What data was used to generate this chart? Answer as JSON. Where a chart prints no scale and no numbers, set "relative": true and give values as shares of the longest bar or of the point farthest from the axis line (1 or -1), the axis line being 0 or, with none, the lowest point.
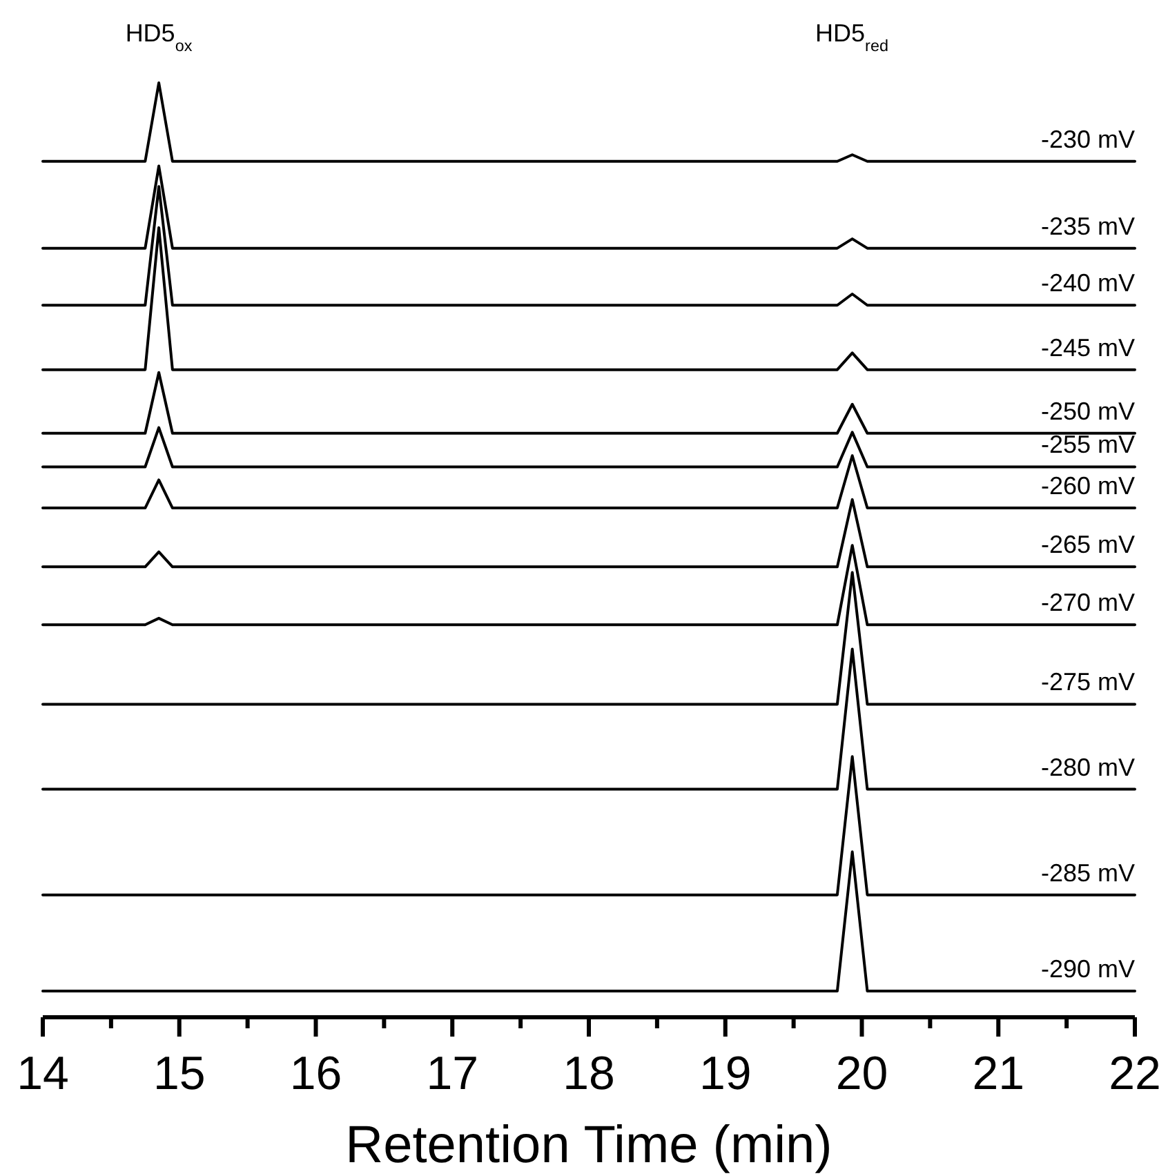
{
  "chart_data": {
    "type": "line",
    "relative": true,
    "xlabel": "Retention Time (min)",
    "xlim": [
      14,
      22
    ],
    "xticks": [
      14,
      {
        "value": 14.5,
        "label": null
      },
      15,
      {
        "value": 15.5,
        "label": null
      },
      16,
      {
        "value": 16.5,
        "label": null
      },
      17,
      {
        "value": 17.5,
        "label": null
      },
      18,
      {
        "value": 18.5,
        "label": null
      },
      19,
      {
        "value": 19.5,
        "label": null
      },
      20,
      {
        "value": 20.5,
        "label": null
      },
      21,
      {
        "value": 21.5,
        "label": null
      },
      22
    ],
    "x": [
      14,
      14.75,
      14.85,
      14.95,
      19.82,
      19.93,
      20.04,
      22
    ],
    "annotations": [
      "HD5$_{ox}$",
      "HD5$_{red}$"
    ],
    "series": [
      {
        "name": "-230 mV",
        "color": "#000000",
        "values": [
          0.916,
          0.916,
          1.0,
          0.916,
          0.916,
          0.923,
          0.916,
          0.916
        ]
      },
      {
        "name": "-235 mV",
        "color": "#000000",
        "values": [
          0.823,
          0.823,
          0.911,
          0.823,
          0.823,
          0.833,
          0.823,
          0.823
        ]
      },
      {
        "name": "-240 mV",
        "color": "#000000",
        "values": [
          0.762,
          0.762,
          0.889,
          0.762,
          0.762,
          0.774,
          0.762,
          0.762
        ]
      },
      {
        "name": "-245 mV",
        "color": "#000000",
        "values": [
          0.693,
          0.693,
          0.845,
          0.693,
          0.693,
          0.711,
          0.693,
          0.693
        ]
      },
      {
        "name": "-250 mV",
        "color": "#000000",
        "values": [
          0.625,
          0.625,
          0.69,
          0.625,
          0.625,
          0.656,
          0.625,
          0.625
        ]
      },
      {
        "name": "-255 mV",
        "color": "#000000",
        "values": [
          0.589,
          0.589,
          0.631,
          0.589,
          0.589,
          0.626,
          0.589,
          0.589
        ]
      },
      {
        "name": "-260 mV",
        "color": "#000000",
        "values": [
          0.545,
          0.545,
          0.575,
          0.545,
          0.545,
          0.601,
          0.545,
          0.545
        ]
      },
      {
        "name": "-265 mV",
        "color": "#000000",
        "values": [
          0.482,
          0.482,
          0.498,
          0.482,
          0.482,
          0.554,
          0.482,
          0.482
        ]
      },
      {
        "name": "-270 mV",
        "color": "#000000",
        "values": [
          0.42,
          0.42,
          0.427,
          0.42,
          0.42,
          0.505,
          0.42,
          0.42
        ]
      },
      {
        "name": "-275 mV",
        "color": "#000000",
        "values": [
          0.335,
          0.335,
          0.335,
          0.335,
          0.335,
          0.476,
          0.335,
          0.335
        ]
      },
      {
        "name": "-280 mV",
        "color": "#000000",
        "values": [
          0.244,
          0.244,
          0.244,
          0.244,
          0.244,
          0.394,
          0.244,
          0.244
        ]
      },
      {
        "name": "-285 mV",
        "color": "#000000",
        "values": [
          0.131,
          0.131,
          0.131,
          0.131,
          0.131,
          0.279,
          0.131,
          0.131
        ]
      },
      {
        "name": "-290 mV",
        "color": "#000000",
        "values": [
          0.028,
          0.028,
          0.028,
          0.028,
          0.028,
          0.177,
          0.028,
          0.028
        ]
      }
    ]
  }
}
